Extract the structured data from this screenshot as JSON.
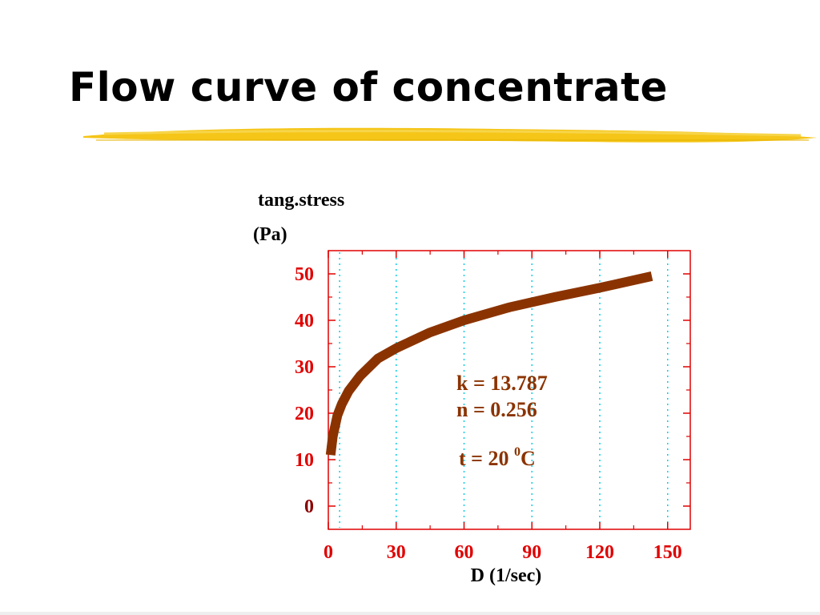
{
  "slide": {
    "title": "Flow curve of concentrate"
  },
  "colors": {
    "title": "#000000",
    "highlight": "#f5c518",
    "axis": "#e00000",
    "curve": "#8b3300",
    "grid": "#00cfe8",
    "annotation": "#8b3300"
  },
  "chart_data": {
    "type": "line",
    "title": "",
    "ylabel_lines": [
      "tang.stress",
      "(Pa)"
    ],
    "xlabel": "D (1/sec)",
    "xlim": [
      0,
      160
    ],
    "ylim": [
      -5,
      55
    ],
    "x_ticks": [
      0,
      30,
      60,
      90,
      120,
      150
    ],
    "y_ticks": [
      0,
      10,
      20,
      30,
      40,
      50
    ],
    "grid": {
      "vertical": true,
      "horizontal": false
    },
    "series": [
      {
        "x": [
          1,
          2,
          4,
          6,
          9,
          14,
          22,
          30,
          45,
          60,
          80,
          100,
          120,
          143
        ],
        "y": [
          11,
          15,
          19.5,
          22,
          24.8,
          28,
          31.8,
          34,
          37.4,
          40,
          42.8,
          45,
          47,
          49.5
        ]
      }
    ],
    "annotations": [
      {
        "text": "k = 13.787"
      },
      {
        "text": "n = 0.256"
      },
      {
        "text": "t = 20 ",
        "superscript": "0",
        "unit": "C"
      }
    ]
  }
}
